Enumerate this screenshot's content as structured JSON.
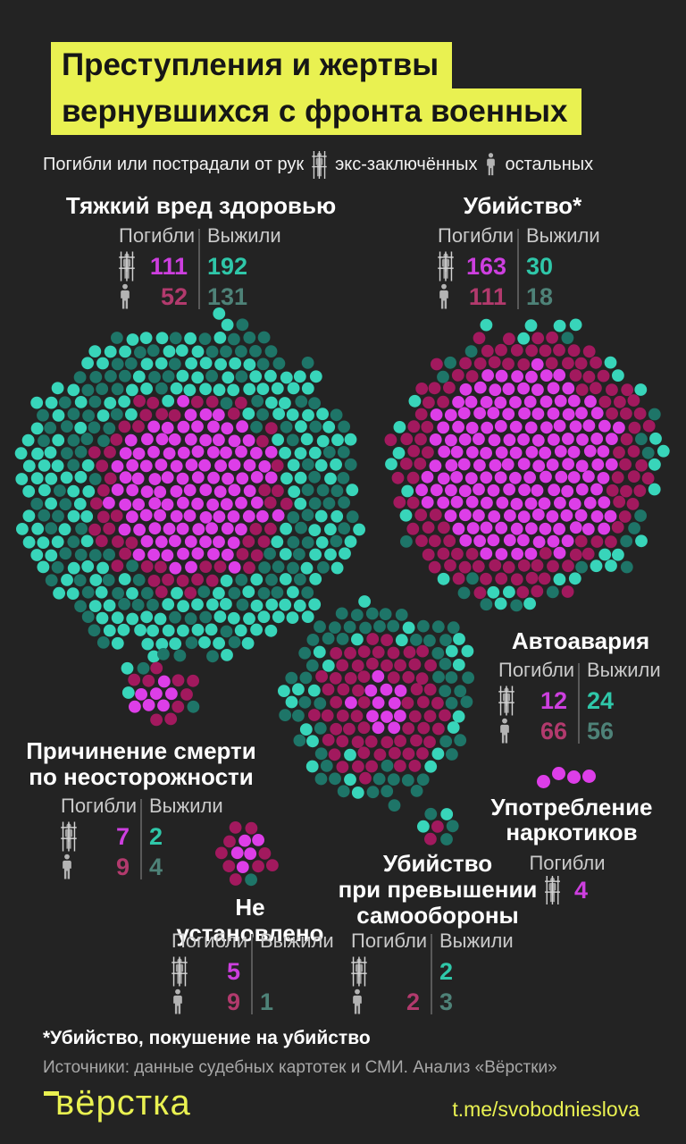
{
  "header": {
    "title_line1": "Преступления и жертвы",
    "title_line2": "вернувшихся с фронта военных"
  },
  "legend": {
    "prefix": "Погибли или пострадали от рук",
    "ex_prisoners_label": "экс-заключённых",
    "others_label": "остальных"
  },
  "sections": {
    "grievous_harm": {
      "title": "Тяжкий вред здоровью",
      "died_label": "Погибли",
      "survived_label": "Выжили",
      "prisoner_died": "111",
      "prisoner_survived": "192",
      "others_died": "52",
      "others_survived": "131"
    },
    "murder": {
      "title": "Убийство*",
      "died_label": "Погибли",
      "survived_label": "Выжили",
      "prisoner_died": "163",
      "prisoner_survived": "30",
      "others_died": "111",
      "others_survived": "18"
    },
    "car_crash": {
      "title": "Автоавария",
      "died_label": "Погибли",
      "survived_label": "Выжили",
      "prisoner_died": "12",
      "prisoner_survived": "24",
      "others_died": "66",
      "others_survived": "56"
    },
    "negligent_death": {
      "title_line1": "Причинение смерти",
      "title_line2": "по неосторожности",
      "died_label": "Погибли",
      "survived_label": "Выжили",
      "prisoner_died": "7",
      "prisoner_survived": "2",
      "others_died": "9",
      "others_survived": "4"
    },
    "not_established": {
      "title": "Не установлено",
      "died_label": "Погибли",
      "survived_label": "Выжили",
      "prisoner_died": "5",
      "prisoner_survived": "",
      "others_died": "9",
      "others_survived": "1"
    },
    "self_defense": {
      "title_line1": "Убийство",
      "title_line2": "при превышении",
      "title_line3": "самообороны",
      "died_label": "Погибли",
      "survived_label": "Выжили",
      "prisoner_died": "",
      "prisoner_survived": "2",
      "others_died": "2",
      "others_survived": "3"
    },
    "drugs": {
      "title_line1": "Употребление",
      "title_line2": "наркотиков",
      "died_label": "Погибли",
      "prisoner_died": "4"
    }
  },
  "footer": {
    "footnote": "*Убийство, покушение на убийство",
    "sources": "Источники: данные судебных картотек и СМИ. Анализ «Вёрстки»",
    "logo": "вёрстка",
    "telegram": "t.me/svobodnieslova"
  },
  "palette": {
    "background": "#232323",
    "accent_yellow": "#e9f151",
    "dot_magenta_bright": "#dd3ee8",
    "dot_magenta_dark": "#a2195e",
    "dot_teal_bright": "#38d5ba",
    "dot_teal_dark": "#1e7568",
    "num_magenta": "#cd3fdf",
    "num_teal": "#2fc7a9",
    "num_crimson": "#b23a6d",
    "num_teal_dark": "#4e8278"
  },
  "chart_data": {
    "type": "pictograph",
    "title": "Преступления и жертвы вернувшихся с фронта военных",
    "legend": {
      "magenta_bright": "погибли от рук экс-заключённых",
      "magenta_dark": "погибли от рук остальных",
      "teal_bright": "выжили, пострадали от рук экс-заключённых",
      "teal_dark": "выжили, пострадали от рук остальных"
    },
    "categories": [
      {
        "key": "grievous_harm",
        "label": "Тяжкий вред здоровью",
        "died": {
          "ex_prisoners": 111,
          "others": 52
        },
        "survived": {
          "ex_prisoners": 192,
          "others": 131
        }
      },
      {
        "key": "murder",
        "label": "Убийство*",
        "died": {
          "ex_prisoners": 163,
          "others": 111
        },
        "survived": {
          "ex_prisoners": 30,
          "others": 18
        }
      },
      {
        "key": "car_crash",
        "label": "Автоавария",
        "died": {
          "ex_prisoners": 12,
          "others": 66
        },
        "survived": {
          "ex_prisoners": 24,
          "others": 56
        }
      },
      {
        "key": "negligent_death",
        "label": "Причинение смерти по неосторожности",
        "died": {
          "ex_prisoners": 7,
          "others": 9
        },
        "survived": {
          "ex_prisoners": 2,
          "others": 4
        }
      },
      {
        "key": "not_established",
        "label": "Не установлено",
        "died": {
          "ex_prisoners": 5,
          "others": 9
        },
        "survived": {
          "ex_prisoners": null,
          "others": 1
        }
      },
      {
        "key": "self_defense",
        "label": "Убийство при превышении самообороны",
        "died": {
          "ex_prisoners": null,
          "others": 2
        },
        "survived": {
          "ex_prisoners": 2,
          "others": 3
        }
      },
      {
        "key": "drugs",
        "label": "Употребление наркотиков",
        "died": {
          "ex_prisoners": 4,
          "others": null
        },
        "survived": {
          "ex_prisoners": null,
          "others": null
        }
      }
    ]
  }
}
